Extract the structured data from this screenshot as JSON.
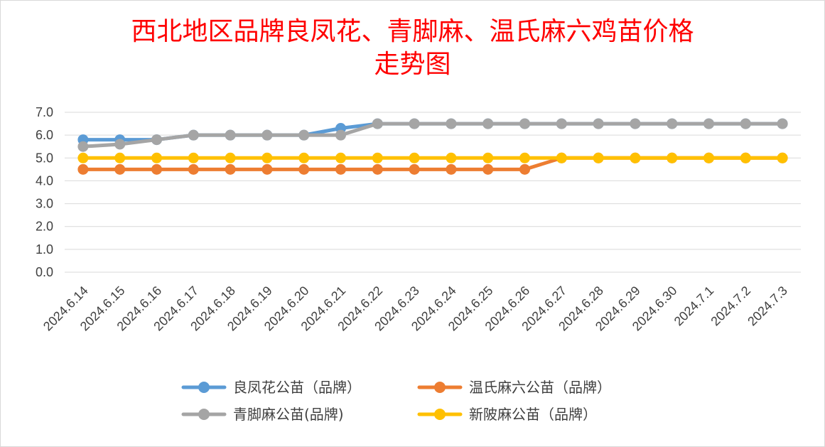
{
  "chart_data": {
    "type": "line",
    "title_line1": "西北地区品牌良凤花、青脚麻、温氏麻六鸡苗价格",
    "title_line2": "走势图",
    "xlabel": "",
    "ylabel": "",
    "ylim": [
      0,
      7
    ],
    "yticks": [
      "0.0",
      "1.0",
      "2.0",
      "3.0",
      "4.0",
      "5.0",
      "6.0",
      "7.0"
    ],
    "grid": true,
    "legend_position": "bottom",
    "categories": [
      "2024.6.14",
      "2024.6.15",
      "2024.6.16",
      "2024.6.17",
      "2024.6.18",
      "2024.6.19",
      "2024.6.20",
      "2024.6.21",
      "2024.6.22",
      "2024.6.23",
      "2024.6.24",
      "2024.6.25",
      "2024.6.26",
      "2024.6.27",
      "2024.6.28",
      "2024.6.29",
      "2024.6.30",
      "2024.7.1",
      "2024.7.2",
      "2024.7.3"
    ],
    "series": [
      {
        "name": "良凤花公苗（品牌）",
        "color": "#5b9bd5",
        "values": [
          5.8,
          5.8,
          5.8,
          6.0,
          6.0,
          6.0,
          6.0,
          6.3,
          6.5,
          6.5,
          6.5,
          6.5,
          6.5,
          6.5,
          6.5,
          6.5,
          6.5,
          6.5,
          6.5,
          6.5
        ]
      },
      {
        "name": "温氏麻六公苗（品牌）",
        "color": "#ed7d31",
        "values": [
          4.5,
          4.5,
          4.5,
          4.5,
          4.5,
          4.5,
          4.5,
          4.5,
          4.5,
          4.5,
          4.5,
          4.5,
          4.5,
          5.0,
          5.0,
          5.0,
          5.0,
          5.0,
          5.0,
          5.0
        ]
      },
      {
        "name": "青脚麻公苗(品牌)",
        "color": "#a5a5a5",
        "values": [
          5.5,
          5.6,
          5.8,
          6.0,
          6.0,
          6.0,
          6.0,
          6.0,
          6.5,
          6.5,
          6.5,
          6.5,
          6.5,
          6.5,
          6.5,
          6.5,
          6.5,
          6.5,
          6.5,
          6.5
        ]
      },
      {
        "name": "新陂麻公苗（品牌）",
        "color": "#ffc000",
        "values": [
          5.0,
          5.0,
          5.0,
          5.0,
          5.0,
          5.0,
          5.0,
          5.0,
          5.0,
          5.0,
          5.0,
          5.0,
          5.0,
          5.0,
          5.0,
          5.0,
          5.0,
          5.0,
          5.0,
          5.0
        ]
      }
    ]
  }
}
